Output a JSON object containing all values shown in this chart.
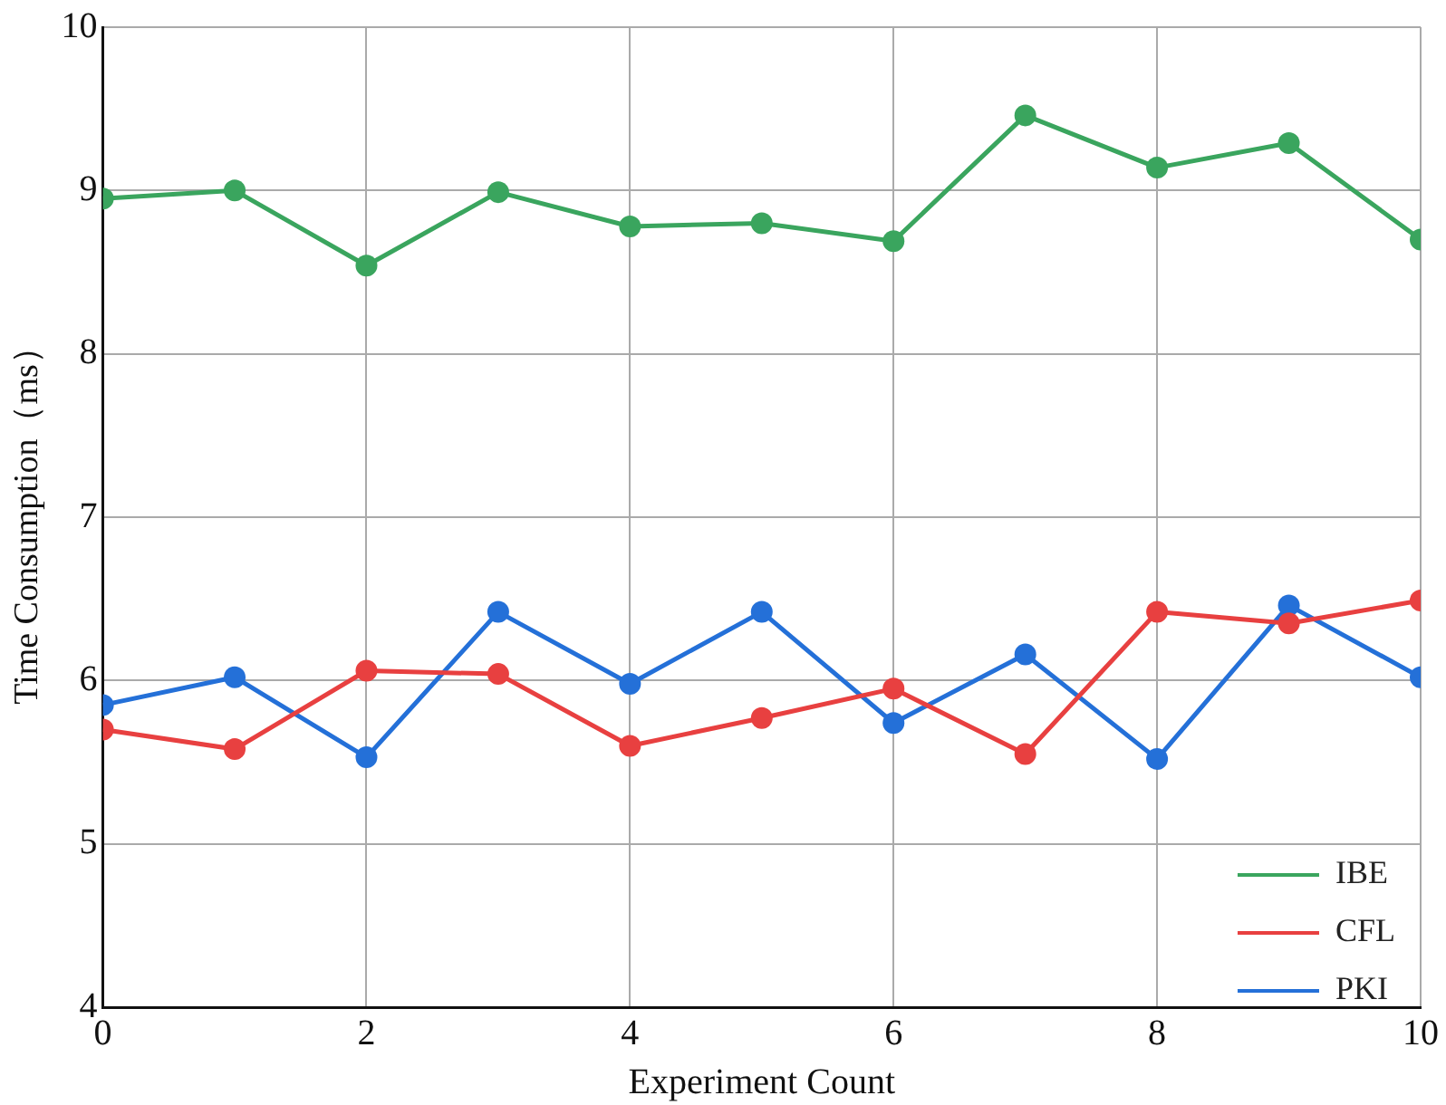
{
  "chart_data": {
    "type": "line",
    "xlabel": "Experiment Count",
    "ylabel": "Time Consumption（ms）",
    "x": [
      0,
      1,
      2,
      3,
      4,
      5,
      6,
      7,
      8,
      9,
      10
    ],
    "series": [
      {
        "name": "IBE",
        "color": "#3aa55e",
        "values": [
          8.95,
          9.0,
          8.54,
          8.99,
          8.78,
          8.8,
          8.69,
          9.46,
          9.14,
          9.29,
          8.7
        ]
      },
      {
        "name": "CFL",
        "color": "#e84040",
        "values": [
          5.7,
          5.58,
          6.06,
          6.04,
          5.6,
          5.77,
          5.95,
          5.55,
          6.42,
          6.35,
          6.49
        ]
      },
      {
        "name": "PKI",
        "color": "#2470d8",
        "values": [
          5.85,
          6.02,
          5.53,
          6.42,
          5.98,
          6.42,
          5.74,
          6.16,
          5.52,
          6.46,
          6.02
        ]
      }
    ],
    "xlim": [
      0,
      10
    ],
    "xticks": [
      0,
      2,
      4,
      6,
      8,
      10
    ],
    "ylim": [
      4,
      10
    ],
    "yticks": [
      4,
      5,
      6,
      7,
      8,
      9,
      10
    ],
    "grid": true,
    "legend": "bottom right",
    "marker": "circle",
    "line_style": "solid"
  }
}
